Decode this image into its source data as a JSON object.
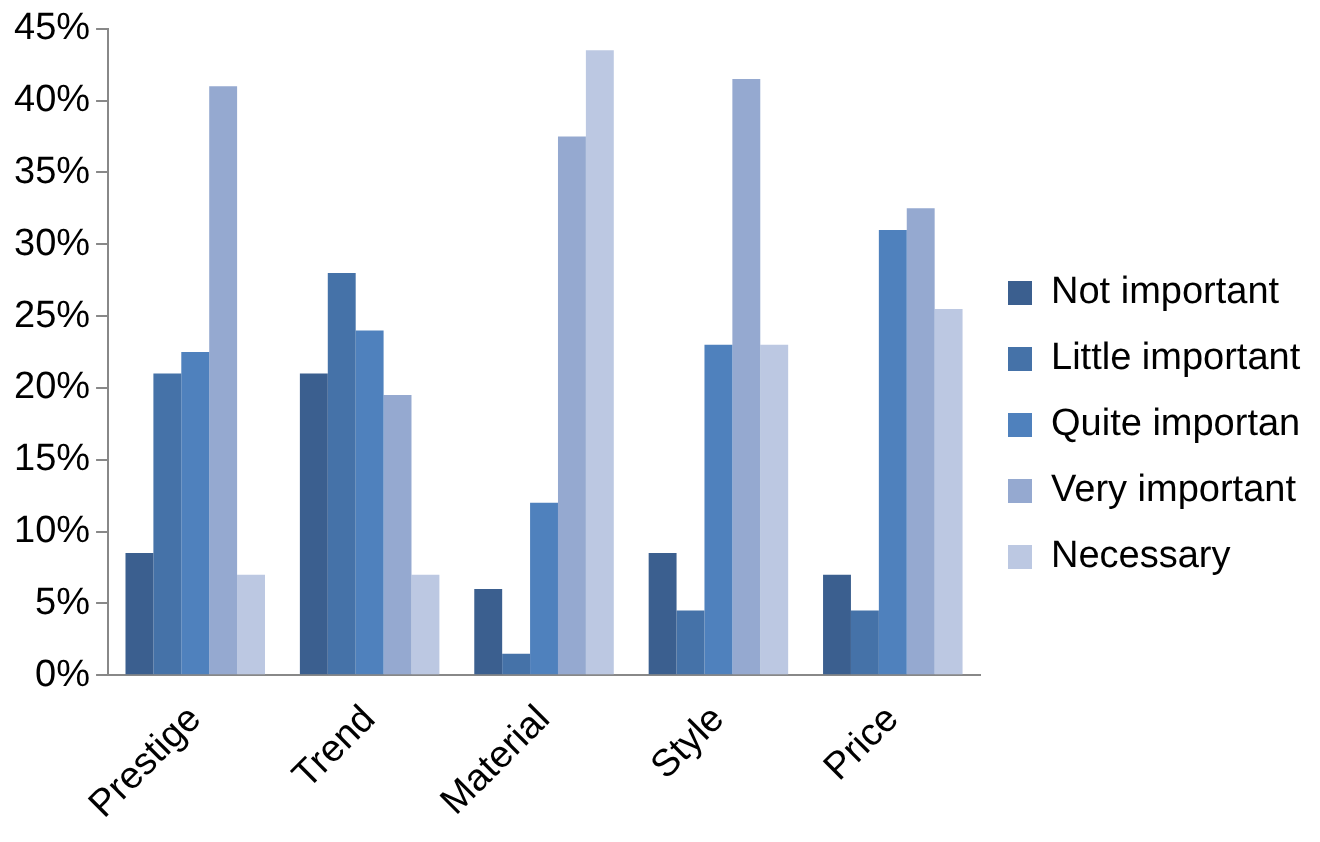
{
  "chart_data": {
    "type": "bar",
    "categories": [
      "Prestige",
      "Trend",
      "Material",
      "Style",
      "Price"
    ],
    "series": [
      {
        "name": "Not important",
        "color": "#3b5f8f",
        "values": [
          8.5,
          21,
          6,
          8.5,
          7
        ]
      },
      {
        "name": "Little important",
        "color": "#4572a8",
        "values": [
          21,
          28,
          1.5,
          4.5,
          4.5
        ]
      },
      {
        "name": "Quite importan",
        "color": "#4f81bd",
        "values": [
          22.5,
          24,
          12,
          23,
          31
        ]
      },
      {
        "name": "Very important",
        "color": "#95a9d0",
        "values": [
          41,
          19.5,
          37.5,
          41.5,
          32.5
        ]
      },
      {
        "name": "Necessary",
        "color": "#bcc8e2",
        "values": [
          7,
          7,
          43.5,
          23,
          25.5
        ]
      }
    ],
    "ylim": [
      0,
      45
    ],
    "yticks": [
      {
        "value": 0,
        "label": "0%"
      },
      {
        "value": 5,
        "label": "5%"
      },
      {
        "value": 10,
        "label": "10%"
      },
      {
        "value": 15,
        "label": "15%"
      },
      {
        "value": 20,
        "label": "20%"
      },
      {
        "value": 25,
        "label": "25%"
      },
      {
        "value": 30,
        "label": "30%"
      },
      {
        "value": 35,
        "label": "35%"
      },
      {
        "value": 40,
        "label": "40%"
      },
      {
        "value": 45,
        "label": "45%"
      }
    ],
    "grid": false,
    "legend": "right"
  }
}
